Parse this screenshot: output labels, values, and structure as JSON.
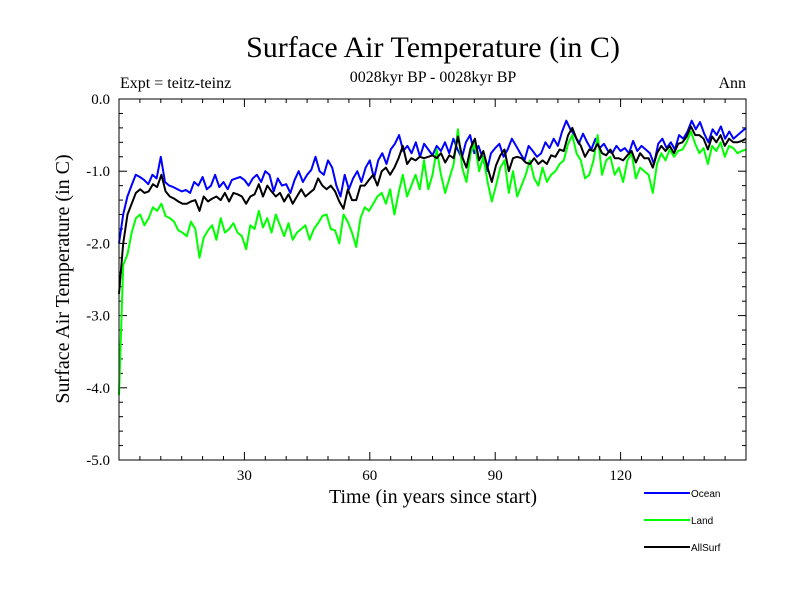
{
  "chart_data": {
    "type": "line",
    "title": "Surface Air Temperature (in C)",
    "subtitle": "0028kyr BP - 0028kyr BP",
    "left_annotation": "Expt = teitz-teinz",
    "right_annotation": "Ann",
    "xlabel": "Time (in years since start)",
    "ylabel": "Surface Air Temperature (in C)",
    "xlim": [
      0,
      150
    ],
    "ylim": [
      -5.0,
      0.0
    ],
    "xticks": [
      30,
      60,
      90,
      120
    ],
    "xtick_labels": [
      "30",
      "60",
      "90",
      "120"
    ],
    "yticks": [
      0.0,
      -1.0,
      -2.0,
      -3.0,
      -4.0,
      -5.0
    ],
    "ytick_labels": [
      "0.0",
      "-1.0",
      "-2.0",
      "-3.0",
      "-4.0",
      "-5.0"
    ],
    "series": [
      {
        "name": "Ocean",
        "color": "#0000ff",
        "values": [
          -2.0,
          -1.6,
          -1.35,
          -1.2,
          -1.05,
          -1.08,
          -1.12,
          -1.18,
          -1.05,
          -1.1,
          -0.8,
          -1.15,
          -1.2,
          -1.22,
          -1.25,
          -1.28,
          -1.26,
          -1.3,
          -1.15,
          -1.2,
          -1.08,
          -1.25,
          -1.2,
          -1.05,
          -1.22,
          -1.15,
          -1.25,
          -1.12,
          -1.1,
          -1.08,
          -1.12,
          -1.2,
          -1.1,
          -1.05,
          -1.15,
          -1.0,
          -1.05,
          -1.28,
          -1.1,
          -1.2,
          -1.18,
          -1.3,
          -1.12,
          -1.0,
          -1.15,
          -1.05,
          -0.98,
          -0.8,
          -1.0,
          -1.05,
          -0.85,
          -0.95,
          -1.2,
          -1.35,
          -1.05,
          -1.25,
          -1.1,
          -1.0,
          -1.15,
          -0.95,
          -0.85,
          -1.1,
          -0.85,
          -0.75,
          -0.9,
          -0.7,
          -0.62,
          -0.5,
          -0.72,
          -0.65,
          -0.75,
          -0.6,
          -0.8,
          -0.62,
          -0.7,
          -0.78,
          -0.65,
          -0.72,
          -0.6,
          -0.75,
          -0.55,
          -0.7,
          -0.82,
          -0.6,
          -0.5,
          -0.75,
          -0.65,
          -0.82,
          -1.0,
          -0.75,
          -0.68,
          -0.62,
          -0.8,
          -0.7,
          -0.55,
          -0.65,
          -0.75,
          -0.85,
          -0.65,
          -0.72,
          -0.8,
          -0.75,
          -0.6,
          -0.68,
          -0.55,
          -0.65,
          -0.45,
          -0.3,
          -0.42,
          -0.5,
          -0.62,
          -0.48,
          -0.6,
          -0.7,
          -0.55,
          -0.68,
          -0.62,
          -0.72,
          -0.75,
          -0.65,
          -0.72,
          -0.68,
          -0.75,
          -0.58,
          -0.72,
          -0.65,
          -0.7,
          -0.75,
          -0.9,
          -0.62,
          -0.55,
          -0.68,
          -0.6,
          -0.7,
          -0.5,
          -0.55,
          -0.45,
          -0.3,
          -0.42,
          -0.32,
          -0.48,
          -0.6,
          -0.42,
          -0.5,
          -0.38,
          -0.55,
          -0.45,
          -0.55,
          -0.5,
          -0.45,
          -0.4
        ]
      },
      {
        "name": "Land",
        "color": "#00ff00",
        "values": [
          -4.1,
          -2.3,
          -2.15,
          -1.85,
          -1.65,
          -1.6,
          -1.75,
          -1.65,
          -1.5,
          -1.55,
          -1.45,
          -1.62,
          -1.65,
          -1.7,
          -1.82,
          -1.85,
          -1.9,
          -1.7,
          -1.8,
          -2.2,
          -1.92,
          -1.82,
          -1.75,
          -1.95,
          -1.65,
          -1.85,
          -1.8,
          -1.72,
          -1.85,
          -1.9,
          -2.08,
          -1.75,
          -1.8,
          -1.55,
          -1.78,
          -1.65,
          -1.85,
          -1.6,
          -1.75,
          -1.9,
          -1.72,
          -1.95,
          -1.85,
          -1.8,
          -1.75,
          -1.95,
          -1.8,
          -1.72,
          -1.62,
          -1.6,
          -1.8,
          -1.82,
          -2.0,
          -1.6,
          -1.7,
          -1.85,
          -2.05,
          -1.65,
          -1.5,
          -1.55,
          -1.45,
          -1.35,
          -1.3,
          -1.45,
          -1.25,
          -1.6,
          -1.3,
          -1.05,
          -1.35,
          -1.2,
          -1.05,
          -1.25,
          -0.85,
          -1.25,
          -1.05,
          -0.7,
          -1.05,
          -1.3,
          -1.1,
          -0.9,
          -0.42,
          -0.95,
          -1.15,
          -0.75,
          -0.62,
          -1.0,
          -0.8,
          -1.15,
          -1.42,
          -1.2,
          -0.95,
          -0.85,
          -1.3,
          -1.0,
          -1.35,
          -1.2,
          -1.05,
          -0.85,
          -1.1,
          -1.2,
          -0.95,
          -1.15,
          -1.05,
          -1.0,
          -0.9,
          -0.85,
          -0.62,
          -0.5,
          -0.75,
          -0.85,
          -1.1,
          -1.05,
          -0.85,
          -0.5,
          -1.05,
          -0.85,
          -0.8,
          -1.05,
          -0.95,
          -1.15,
          -0.85,
          -0.75,
          -1.1,
          -0.95,
          -1.0,
          -1.05,
          -1.3,
          -0.9,
          -0.75,
          -0.85,
          -0.7,
          -0.8,
          -0.72,
          -0.7,
          -0.6,
          -0.45,
          -0.62,
          -0.75,
          -0.68,
          -0.9,
          -0.65,
          -0.72,
          -0.6,
          -0.8,
          -0.65,
          -0.68,
          -0.75,
          -0.72,
          -0.7
        ]
      },
      {
        "name": "AllSurf",
        "color": "#000000",
        "values": [
          -2.7,
          -2.0,
          -1.6,
          -1.45,
          -1.3,
          -1.25,
          -1.3,
          -1.28,
          -1.18,
          -1.22,
          -1.05,
          -1.28,
          -1.35,
          -1.38,
          -1.42,
          -1.45,
          -1.45,
          -1.42,
          -1.4,
          -1.55,
          -1.35,
          -1.42,
          -1.38,
          -1.35,
          -1.4,
          -1.3,
          -1.42,
          -1.3,
          -1.32,
          -1.35,
          -1.45,
          -1.35,
          -1.32,
          -1.18,
          -1.35,
          -1.2,
          -1.28,
          -1.35,
          -1.3,
          -1.42,
          -1.32,
          -1.45,
          -1.35,
          -1.25,
          -1.35,
          -1.3,
          -1.25,
          -1.1,
          -1.2,
          -1.25,
          -1.2,
          -1.28,
          -1.42,
          -1.52,
          -1.25,
          -1.4,
          -1.4,
          -1.2,
          -1.2,
          -1.12,
          -1.05,
          -1.2,
          -1.0,
          -0.95,
          -1.05,
          -0.95,
          -0.82,
          -0.65,
          -0.9,
          -0.82,
          -0.85,
          -0.8,
          -0.82,
          -0.8,
          -0.78,
          -0.82,
          -0.75,
          -0.88,
          -0.78,
          -0.82,
          -0.52,
          -0.8,
          -0.95,
          -0.68,
          -0.55,
          -0.85,
          -0.72,
          -0.95,
          -1.15,
          -0.92,
          -0.78,
          -0.7,
          -1.0,
          -0.82,
          -0.8,
          -0.82,
          -0.88,
          -0.9,
          -0.82,
          -0.9,
          -0.85,
          -0.9,
          -0.78,
          -0.8,
          -0.7,
          -0.72,
          -0.5,
          -0.4,
          -0.55,
          -0.65,
          -0.8,
          -0.7,
          -0.72,
          -0.62,
          -0.75,
          -0.78,
          -0.7,
          -0.82,
          -0.82,
          -0.85,
          -0.78,
          -0.72,
          -0.88,
          -0.75,
          -0.82,
          -0.82,
          -0.95,
          -0.75,
          -0.65,
          -0.72,
          -0.65,
          -0.75,
          -0.62,
          -0.6,
          -0.52,
          -0.38,
          -0.5,
          -0.5,
          -0.55,
          -0.7,
          -0.52,
          -0.6,
          -0.5,
          -0.65,
          -0.55,
          -0.6,
          -0.6,
          -0.58,
          -0.55
        ]
      }
    ],
    "legend": [
      "Ocean",
      "Land",
      "AllSurf"
    ],
    "legend_position": "bottom-right"
  }
}
